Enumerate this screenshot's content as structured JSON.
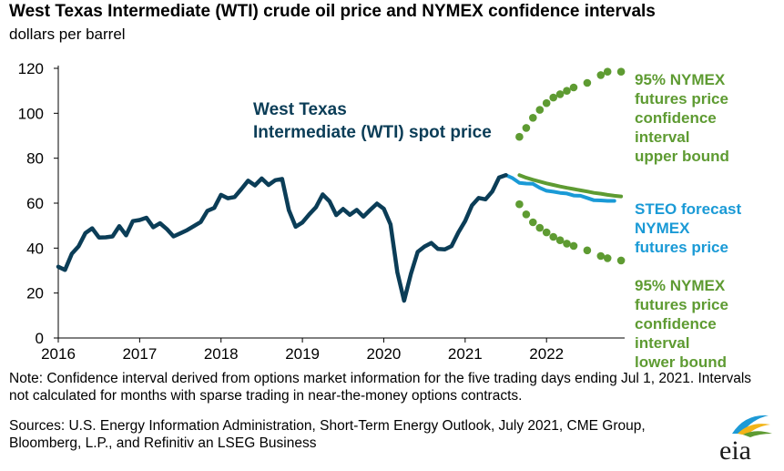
{
  "title": "West Texas Intermediate (WTI) crude oil price and NYMEX confidence intervals",
  "subtitle": "dollars per barrel",
  "note": "Note: Confidence interval derived from options market information for the five trading days ending Jul 1, 2021. Intervals not calculated for months with sparse trading in near-the-money options contracts.",
  "sources": "Sources: U.S. Energy Information Administration, Short-Term Energy Outlook, July 2021, CME Group, Bloomberg, L.P., and Refinitiv an LSEG Business",
  "logo_text": "eia",
  "colors": {
    "wti": "#0b3d57",
    "steo": "#1a9ad6",
    "nymex": "#5e9b32",
    "axis": "#000000"
  },
  "chart_data": {
    "type": "line",
    "title": "West Texas Intermediate (WTI) crude oil price and NYMEX confidence intervals",
    "ylabel": "dollars per barrel",
    "ylim": [
      0,
      120
    ],
    "yticks": [
      "0",
      "20",
      "40",
      "60",
      "80",
      "100",
      "120"
    ],
    "xlim": [
      2016,
      2022.96
    ],
    "xticks": [
      "2016",
      "2017",
      "2018",
      "2019",
      "2020",
      "2021",
      "2022"
    ],
    "grid": false,
    "series": [
      {
        "name": "West Texas Intermediate (WTI) spot price",
        "label_lines": [
          "West Texas",
          "Intermediate (WTI) spot price"
        ],
        "style": "solid",
        "color": "#0b3d57",
        "start": 2016.0,
        "step": 0.0833333,
        "values": [
          31.7,
          30.3,
          37.5,
          40.8,
          46.7,
          48.8,
          44.7,
          44.8,
          45.2,
          49.8,
          45.7,
          52.0,
          52.5,
          53.5,
          49.3,
          51.1,
          48.5,
          45.2,
          46.6,
          48.0,
          49.8,
          51.6,
          56.6,
          57.9,
          63.7,
          62.2,
          62.7,
          66.3,
          70.0,
          67.9,
          71.0,
          68.1,
          70.2,
          70.8,
          56.9,
          49.5,
          51.4,
          55.0,
          58.2,
          63.9,
          60.8,
          54.7,
          57.4,
          54.8,
          57.0,
          54.0,
          57.0,
          59.8,
          57.5,
          50.5,
          29.2,
          16.6,
          28.6,
          38.3,
          40.7,
          42.3,
          39.6,
          39.4,
          40.9,
          47.0,
          52.0,
          59.0,
          62.3,
          61.7,
          65.2,
          71.4,
          72.5
        ]
      },
      {
        "name": "STEO forecast NYMEX futures price",
        "label_lines": [
          "STEO forecast",
          "NYMEX",
          "futures price"
        ],
        "style": "solid",
        "color": "#1a9ad6",
        "start": 2021.4167,
        "step": 0.0833333,
        "values": [
          71.4,
          72.5,
          71.1,
          69.0,
          68.7,
          68.6,
          66.8,
          65.5,
          65.1,
          64.6,
          64.3,
          63.4,
          63.3,
          62.3,
          61.3,
          61.2,
          61.0,
          61.0
        ]
      },
      {
        "name": "NYMEX futures price",
        "style": "solid",
        "color": "#5e9b32",
        "start": 2021.6667,
        "step": 0.0833333,
        "values": [
          72.5,
          71.3,
          70.4,
          69.6,
          68.8,
          68.1,
          67.4,
          66.8,
          66.3,
          65.7,
          65.2,
          64.6,
          64.2,
          63.7,
          63.3,
          63.0
        ]
      },
      {
        "name": "95% NYMEX futures price confidence interval upper bound",
        "label_lines": [
          "95% NYMEX",
          "futures price",
          "confidence",
          "interval",
          "upper bound"
        ],
        "style": "dotted",
        "color": "#5e9b32",
        "points": [
          [
            2021.6667,
            89.5
          ],
          [
            2021.75,
            93.5
          ],
          [
            2021.8333,
            98.0
          ],
          [
            2021.9167,
            101.5
          ],
          [
            2022.0,
            104.5
          ],
          [
            2022.0833,
            107.0
          ],
          [
            2022.1667,
            108.5
          ],
          [
            2022.25,
            110.0
          ],
          [
            2022.3333,
            111.5
          ],
          [
            2022.5,
            113.5
          ],
          [
            2022.6667,
            117.0
          ],
          [
            2022.75,
            118.5
          ],
          [
            2022.9167,
            118.5
          ]
        ]
      },
      {
        "name": "95% NYMEX futures price confidence interval lower bound",
        "label_lines": [
          "95% NYMEX",
          "futures price",
          "confidence",
          "interval",
          "lower bound"
        ],
        "style": "dotted",
        "color": "#5e9b32",
        "points": [
          [
            2021.6667,
            59.5
          ],
          [
            2021.75,
            55.0
          ],
          [
            2021.8333,
            51.5
          ],
          [
            2021.9167,
            49.0
          ],
          [
            2022.0,
            47.0
          ],
          [
            2022.0833,
            45.0
          ],
          [
            2022.1667,
            43.5
          ],
          [
            2022.25,
            42.0
          ],
          [
            2022.3333,
            41.0
          ],
          [
            2022.5,
            39.0
          ],
          [
            2022.6667,
            36.5
          ],
          [
            2022.75,
            35.5
          ],
          [
            2022.9167,
            34.5
          ]
        ]
      }
    ]
  }
}
